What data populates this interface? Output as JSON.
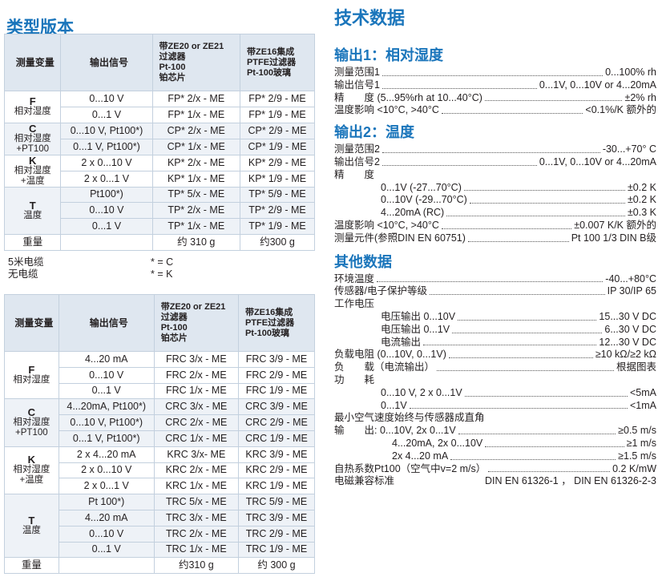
{
  "left": {
    "title": "类型版本",
    "headers": [
      "测量变量",
      "输出信号",
      "带ZE20 or ZE21\n过滤器\nPt-100\n铂芯片",
      "带ZE16集成\nPTFE过滤器\nPt-100玻璃"
    ],
    "table1": [
      {
        "letter": "F",
        "desc": "相对湿度",
        "rows": [
          [
            "0...10 V",
            "FP* 2/x - ME",
            "FP* 2/9 - ME"
          ],
          [
            "0...1 V",
            "FP* 1/x - ME",
            "FP* 1/9 - ME"
          ]
        ]
      },
      {
        "letter": "C",
        "desc": "相对湿度\n+PT100",
        "rows": [
          [
            "0...10 V, Pt100*)",
            "CP* 2/x - ME",
            "CP* 2/9 - ME"
          ],
          [
            "0...1 V, Pt100*)",
            "CP* 1/x - ME",
            "CP* 1/9 - ME"
          ]
        ]
      },
      {
        "letter": "K",
        "desc": "相对湿度\n+温度",
        "rows": [
          [
            "2 x 0...10 V",
            "KP* 2/x - ME",
            "KP* 2/9 - ME"
          ],
          [
            "2 x 0...1 V",
            "KP* 1/x - ME",
            "KP* 1/9 - ME"
          ]
        ]
      },
      {
        "letter": "T",
        "desc": "温度",
        "rows": [
          [
            "Pt100*)",
            "TP* 5/x - ME",
            "TP* 5/9 - ME"
          ],
          [
            "0...10 V",
            "TP* 2/x - ME",
            "TP* 2/9 - ME"
          ],
          [
            "0...1 V",
            "TP* 1/x - ME",
            "TP* 1/9 - ME"
          ]
        ]
      }
    ],
    "weight1": [
      "重量",
      "",
      "约 310 g",
      "约300 g"
    ],
    "notes": [
      {
        "label": "5米电缆",
        "sym": "* = C"
      },
      {
        "label": "无电缆",
        "sym": "* = K"
      }
    ],
    "table2": [
      {
        "letter": "F",
        "desc": "相对湿度",
        "rows": [
          [
            "4...20 mA",
            "FRC 3/x - ME",
            "FRC 3/9 - ME"
          ],
          [
            "0...10 V",
            "FRC 2/x - ME",
            "FRC 2/9 - ME"
          ],
          [
            "0...1 V",
            "FRC 1/x - ME",
            "FRC 1/9 - ME"
          ]
        ]
      },
      {
        "letter": "C",
        "desc": "相对湿度\n+PT100",
        "rows": [
          [
            "4...20mA, Pt100*)",
            "CRC 3/x - ME",
            "CRC 3/9 - ME"
          ],
          [
            "0...10 V, Pt100*)",
            "CRC 2/x - ME",
            "CRC 2/9 - ME"
          ],
          [
            "0...1 V, Pt100*)",
            "CRC 1/x - ME",
            "CRC 1/9 - ME"
          ]
        ]
      },
      {
        "letter": "K",
        "desc": "相对湿度\n+温度",
        "rows": [
          [
            "2 x 4...20 mA",
            "KRC 3/x- ME",
            "KRC 3/9 - ME"
          ],
          [
            "2 x 0...10 V",
            "KRC 2/x - ME",
            "KRC 2/9 - ME"
          ],
          [
            "2 x 0...1 V",
            "KRC 1/x - ME",
            "KRC 1/9 - ME"
          ]
        ]
      },
      {
        "letter": "T",
        "desc": "温度",
        "rows": [
          [
            "Pt 100*)",
            "TRC 5/x - ME",
            "TRC 5/9 - ME"
          ],
          [
            "4...20 mA",
            "TRC 3/x - ME",
            "TRC 3/9 - ME"
          ],
          [
            "0...10 V",
            "TRC 2/x - ME",
            "TRC 2/9 - ME"
          ],
          [
            "0...1 V",
            "TRC 1/x - ME",
            "TRC 1/9 - ME"
          ]
        ]
      }
    ],
    "weight2": [
      "重量",
      "",
      "约310 g",
      "约 300 g"
    ]
  },
  "right": {
    "title": "技术数据",
    "sections": [
      {
        "heading": "输出1：相对湿度",
        "lines": [
          {
            "l": "测量范围1",
            "v": "0...100% rh"
          },
          {
            "l": "输出信号1",
            "v": "0...1V, 0...10V or 4...20mA"
          },
          {
            "l": "精　　度  (5...95%rh at 10...40°C)",
            "v": "±2% rh"
          },
          {
            "l": "温度影响  <10°C, >40°C",
            "v": "<0.1%/K 额外的"
          }
        ]
      },
      {
        "heading": "输出2：温度",
        "lines": [
          {
            "l": "测量范围2",
            "v": "-30...+70° C"
          },
          {
            "l": "输出信号2",
            "v": "0...1V, 0...10V or 4...20mA"
          },
          {
            "l": "精　　度"
          },
          {
            "l": "0...1V (-27...70°C)",
            "v": "±0.2  K",
            "ind": 1
          },
          {
            "l": "0...10V (-29...70°C)",
            "v": "±0.2  K",
            "ind": 1
          },
          {
            "l": "4...20mA (RC)",
            "v": "±0.3 K",
            "ind": 1
          },
          {
            "l": "温度影响  <10°C, >40°C",
            "v": "±0.007 K/K 额外的"
          },
          {
            "l": "测量元件(参照DIN EN 60751)",
            "v": "Pt 100 1/3 DIN B级"
          }
        ]
      },
      {
        "heading": "其他数据",
        "lines": [
          {
            "l": "环境温度",
            "v": "-40...+80°C"
          },
          {
            "l": "传感器/电子保护等级",
            "v": "IP 30/IP 65"
          },
          {
            "l": "工作电压"
          },
          {
            "l": "电压输出 0...10V",
            "v": "15...30 V DC",
            "ind": 1
          },
          {
            "l": "电压输出 0...1V",
            "v": "6...30 V DC",
            "ind": 1
          },
          {
            "l": "电流输出",
            "v": "12...30 V DC",
            "ind": 1
          },
          {
            "l": "负载电阻 (0...10V, 0...1V)",
            "v": "≥10 kΩ/≥2 kΩ"
          },
          {
            "l": "负　　载（电流输出）",
            "v": "根据图表"
          },
          {
            "l": "功　　耗"
          },
          {
            "l": "0...10 V, 2 x 0...1V",
            "v": "<5mA",
            "ind": 1
          },
          {
            "l": "0...1V",
            "v": "<1mA",
            "ind": 1
          },
          {
            "l": "最小空气速度始终与传感器成直角"
          },
          {
            "l": "输　　出:    0...10V, 2x 0...1V",
            "v": "≥0.5 m/s"
          },
          {
            "l": "4...20mA, 2x 0...10V",
            "v": "≥1 m/s",
            "ind": 2
          },
          {
            "l": "2x 4...20 mA",
            "v": "≥1.5 m/s",
            "ind": 2
          },
          {
            "l": "自热系数Pt100（空气中v=2 m/s）",
            "v": "0.2 K/mW"
          },
          {
            "l": "电磁兼容标准",
            "v": "DIN EN 61326-1 ， DIN EN 61326-2-3",
            "nodots": 1
          }
        ]
      }
    ]
  }
}
